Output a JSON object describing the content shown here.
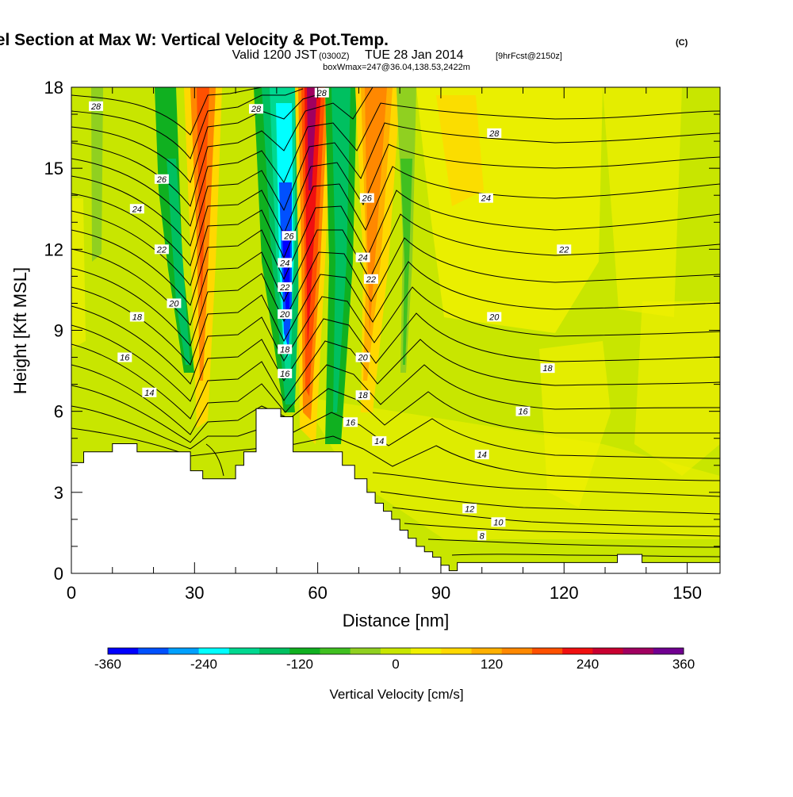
{
  "header": {
    "title": "Wind-Parallel Section at Max W: Vertical Velocity & Pot.Temp.",
    "title_mark": "(C)",
    "valid_prefix": "Valid 1200 JST",
    "valid_utc": "(0300Z)",
    "valid_date": "TUE 28 Jan 2014",
    "forecast": "[9hrFcst@2150z]",
    "box_info": "boxWmax=247@36.04,138.53,2422m"
  },
  "chart_data": {
    "type": "heatmap",
    "xlabel": "Distance [nm]",
    "ylabel": "Height [Kft MSL]",
    "xlim": [
      0,
      158
    ],
    "ylim": [
      0,
      18
    ],
    "x_ticks": [
      0,
      30,
      60,
      90,
      120,
      150
    ],
    "y_ticks": [
      0,
      3,
      6,
      9,
      12,
      15,
      18
    ],
    "x_tick_labels": [
      "0",
      "30",
      "60",
      "90",
      "120",
      "150"
    ],
    "y_tick_labels": [
      "0",
      "3",
      "6",
      "9",
      "12",
      "15",
      "18"
    ],
    "fill_variable": "Vertical velocity (cm/s)",
    "contour_variable": "Potential temperature",
    "colorbar": {
      "label": "Vertical Velocity [cm/s]",
      "range": [
        -360,
        360
      ],
      "step": 40,
      "tick_values": [
        -360,
        -240,
        -120,
        0,
        120,
        240,
        360
      ],
      "tick_labels": [
        "-360",
        "-240",
        "-120",
        "0",
        "120",
        "240",
        "360"
      ],
      "colors": [
        "#0000ff",
        "#0050ff",
        "#00a0ff",
        "#00ffff",
        "#00d890",
        "#00c060",
        "#10b020",
        "#40c020",
        "#90d020",
        "#c8e600",
        "#f0f000",
        "#ffd800",
        "#ffb000",
        "#ff8800",
        "#ff5000",
        "#f01010",
        "#c80030",
        "#a00060",
        "#700090"
      ]
    },
    "terrain_profile": {
      "x": [
        0,
        3,
        3,
        10,
        10,
        16,
        16,
        29,
        29,
        32,
        32,
        40,
        40,
        42,
        42,
        45,
        45,
        51,
        51,
        54,
        54,
        58,
        58,
        66,
        66,
        69,
        69,
        72,
        72,
        74,
        74,
        76,
        76,
        78,
        78,
        80,
        80,
        82,
        82,
        84,
        84,
        86,
        86,
        88,
        88,
        90,
        90,
        92,
        92,
        94,
        94,
        133,
        133,
        139,
        139,
        158
      ],
      "y": [
        4.1,
        4.1,
        4.5,
        4.5,
        4.8,
        4.8,
        4.5,
        4.5,
        3.8,
        3.8,
        3.5,
        3.5,
        4.0,
        4.0,
        4.5,
        4.5,
        6.1,
        6.1,
        5.8,
        5.8,
        4.5,
        4.5,
        4.5,
        4.5,
        4.0,
        4.0,
        3.5,
        3.5,
        3.0,
        3.0,
        2.6,
        2.6,
        2.3,
        2.3,
        2.0,
        2.0,
        1.6,
        1.6,
        1.3,
        1.3,
        1.0,
        1.0,
        0.8,
        0.8,
        0.6,
        0.6,
        0.3,
        0.3,
        0.1,
        0.1,
        0.4,
        0.4,
        0.7,
        0.7,
        0.4,
        0.4
      ]
    },
    "contour_labels": [
      {
        "text": "28",
        "x": 6,
        "y": 17.3
      },
      {
        "text": "28",
        "x": 45,
        "y": 17.2
      },
      {
        "text": "28",
        "x": 61,
        "y": 17.8
      },
      {
        "text": "28",
        "x": 103,
        "y": 16.3
      },
      {
        "text": "26",
        "x": 22,
        "y": 14.6
      },
      {
        "text": "26",
        "x": 53,
        "y": 12.5
      },
      {
        "text": "26",
        "x": 72,
        "y": 13.9
      },
      {
        "text": "24",
        "x": 16,
        "y": 13.5
      },
      {
        "text": "24",
        "x": 52,
        "y": 11.5
      },
      {
        "text": "24",
        "x": 71,
        "y": 11.7
      },
      {
        "text": "24",
        "x": 101,
        "y": 13.9
      },
      {
        "text": "22",
        "x": 22,
        "y": 12.0
      },
      {
        "text": "22",
        "x": 52,
        "y": 10.6
      },
      {
        "text": "22",
        "x": 73,
        "y": 10.9
      },
      {
        "text": "22",
        "x": 120,
        "y": 12.0
      },
      {
        "text": "20",
        "x": 25,
        "y": 10.0
      },
      {
        "text": "20",
        "x": 52,
        "y": 9.6
      },
      {
        "text": "20",
        "x": 71,
        "y": 8.0
      },
      {
        "text": "20",
        "x": 103,
        "y": 9.5
      },
      {
        "text": "18",
        "x": 16,
        "y": 9.5
      },
      {
        "text": "18",
        "x": 52,
        "y": 8.3
      },
      {
        "text": "18",
        "x": 71,
        "y": 6.6
      },
      {
        "text": "18",
        "x": 116,
        "y": 7.6
      },
      {
        "text": "16",
        "x": 13,
        "y": 8.0
      },
      {
        "text": "16",
        "x": 52,
        "y": 7.4
      },
      {
        "text": "16",
        "x": 68,
        "y": 5.6
      },
      {
        "text": "16",
        "x": 110,
        "y": 6.0
      },
      {
        "text": "14",
        "x": 19,
        "y": 6.7
      },
      {
        "text": "14",
        "x": 75,
        "y": 4.9
      },
      {
        "text": "14",
        "x": 100,
        "y": 4.4
      },
      {
        "text": "12",
        "x": 97,
        "y": 2.4
      },
      {
        "text": "10",
        "x": 104,
        "y": 1.9
      },
      {
        "text": "8",
        "x": 100,
        "y": 1.4
      }
    ]
  }
}
